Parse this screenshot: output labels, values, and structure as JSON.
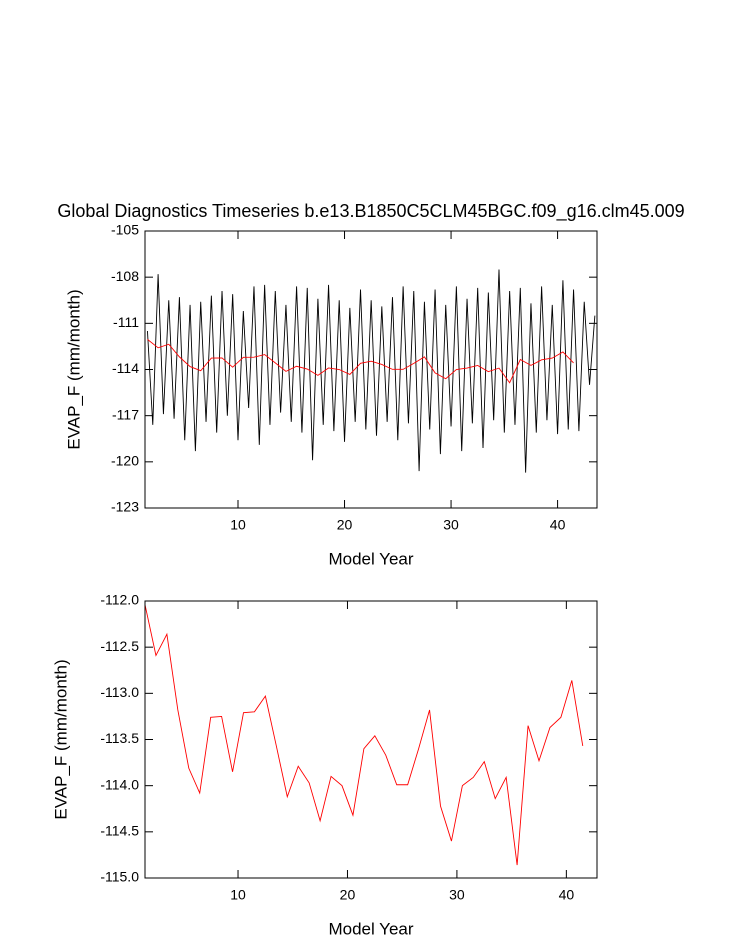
{
  "chart_data": [
    {
      "type": "line",
      "title": "Global Diagnostics Timeseries b.e13.B1850C5CLM45BGC.f09_g16.clm45.009",
      "xlabel": "Model Year",
      "ylabel": "EVAP_F (mm/month)",
      "xlim": [
        1.27,
        43.7
      ],
      "xticks": [
        10,
        20,
        30,
        40
      ],
      "ylim": [
        -123,
        -105
      ],
      "yticks": [
        -105,
        -108,
        -111,
        -114,
        -117,
        -120,
        -123
      ],
      "series": [
        {
          "color": "#000000",
          "x": [
            1.5,
            2,
            2.5,
            3,
            3.5,
            4,
            4.5,
            5,
            5.5,
            6,
            6.5,
            7,
            7.5,
            8,
            8.5,
            9,
            9.5,
            10,
            10.5,
            11,
            11.5,
            12,
            12.5,
            13,
            13.5,
            14,
            14.5,
            15,
            15.5,
            16,
            16.5,
            17,
            17.5,
            18,
            18.5,
            19,
            19.5,
            20,
            20.5,
            21,
            21.5,
            22,
            22.5,
            23,
            23.5,
            24,
            24.5,
            25,
            25.5,
            26,
            26.5,
            27,
            27.5,
            28,
            28.5,
            29,
            29.5,
            30,
            30.5,
            31,
            31.5,
            32,
            32.5,
            33,
            33.5,
            34,
            34.5,
            35,
            35.5,
            36,
            36.5,
            37,
            37.5,
            38,
            38.5,
            39,
            39.5,
            40,
            40.5,
            41,
            41.5,
            42,
            42.5,
            43,
            43.5
          ],
          "values": [
            -111.5,
            -117.6,
            -107.8,
            -116.9,
            -109.5,
            -117.2,
            -109.3,
            -118.6,
            -109.8,
            -119.3,
            -109.6,
            -117.4,
            -109.2,
            -118.1,
            -108.9,
            -117.0,
            -109.1,
            -118.6,
            -110.2,
            -116.5,
            -108.6,
            -118.9,
            -108.5,
            -117.6,
            -108.9,
            -116.8,
            -109.8,
            -117.4,
            -108.6,
            -118.1,
            -108.7,
            -119.9,
            -109.4,
            -117.6,
            -108.5,
            -118.0,
            -109.5,
            -118.7,
            -110.0,
            -117.4,
            -108.8,
            -117.9,
            -109.5,
            -118.3,
            -109.9,
            -117.4,
            -109.3,
            -118.6,
            -108.6,
            -117.5,
            -108.9,
            -120.6,
            -109.6,
            -117.9,
            -108.8,
            -119.5,
            -109.8,
            -117.7,
            -108.6,
            -119.3,
            -109.4,
            -117.5,
            -108.7,
            -119.1,
            -109.0,
            -117.3,
            -107.5,
            -118.1,
            -108.9,
            -117.6,
            -108.7,
            -120.7,
            -109.7,
            -118.1,
            -108.6,
            -117.3,
            -109.8,
            -118.2,
            -108.2,
            -117.9,
            -108.8,
            -118.0,
            -109.6,
            -115.0,
            -110.5
          ]
        },
        {
          "color": "#ff0000",
          "x": [
            1.5,
            2.5,
            3.5,
            4.5,
            5.5,
            6.5,
            7.5,
            8.5,
            9.5,
            10.5,
            11.5,
            12.5,
            13.5,
            14.5,
            15.5,
            16.5,
            17.5,
            18.5,
            19.5,
            20.5,
            21.5,
            22.5,
            23.5,
            24.5,
            25.5,
            26.5,
            27.5,
            28.5,
            29.5,
            30.5,
            31.5,
            32.5,
            33.5,
            34.5,
            35.5,
            36.5,
            37.5,
            38.5,
            39.5,
            40.5,
            41.5
          ],
          "values": [
            -112.04,
            -112.59,
            -112.36,
            -113.18,
            -113.81,
            -114.08,
            -113.26,
            -113.25,
            -113.85,
            -113.21,
            -113.2,
            -113.03,
            -113.57,
            -114.12,
            -113.79,
            -113.97,
            -114.38,
            -113.9,
            -114.0,
            -114.32,
            -113.6,
            -113.46,
            -113.67,
            -113.99,
            -113.99,
            -113.6,
            -113.18,
            -114.22,
            -114.6,
            -114.0,
            -113.91,
            -113.74,
            -114.14,
            -113.91,
            -114.86,
            -113.35,
            -113.73,
            -113.37,
            -113.26,
            -112.86,
            -113.57
          ]
        }
      ]
    },
    {
      "type": "line",
      "xlabel": "Model Year",
      "ylabel": "EVAP_F (mm/month)",
      "xlim": [
        1.5,
        42.8
      ],
      "xticks": [
        10,
        20,
        30,
        40
      ],
      "ylim": [
        -115,
        -112
      ],
      "yticks": [
        {
          "value": -112,
          "label": "-112.0"
        },
        -112.5,
        {
          "value": -113,
          "label": "-113.0"
        },
        -113.5,
        {
          "value": -114,
          "label": "-114.0"
        },
        -114.5,
        {
          "value": -115,
          "label": "-115.0"
        }
      ],
      "series": [
        {
          "color": "#ff0000",
          "x": [
            1.5,
            2.5,
            3.5,
            4.5,
            5.5,
            6.5,
            7.5,
            8.5,
            9.5,
            10.5,
            11.5,
            12.5,
            13.5,
            14.5,
            15.5,
            16.5,
            17.5,
            18.5,
            19.5,
            20.5,
            21.5,
            22.5,
            23.5,
            24.5,
            25.5,
            26.5,
            27.5,
            28.5,
            29.5,
            30.5,
            31.5,
            32.5,
            33.5,
            34.5,
            35.5,
            36.5,
            37.5,
            38.5,
            39.5,
            40.5,
            41.5
          ],
          "values": [
            -112.04,
            -112.59,
            -112.36,
            -113.18,
            -113.81,
            -114.08,
            -113.26,
            -113.25,
            -113.85,
            -113.21,
            -113.2,
            -113.03,
            -113.57,
            -114.12,
            -113.79,
            -113.97,
            -114.38,
            -113.9,
            -114.0,
            -114.32,
            -113.6,
            -113.46,
            -113.67,
            -113.99,
            -113.99,
            -113.6,
            -113.18,
            -114.22,
            -114.6,
            -114.0,
            -113.91,
            -113.74,
            -114.14,
            -113.91,
            -114.86,
            -113.35,
            -113.73,
            -113.37,
            -113.26,
            -112.86,
            -113.57
          ]
        }
      ]
    }
  ]
}
